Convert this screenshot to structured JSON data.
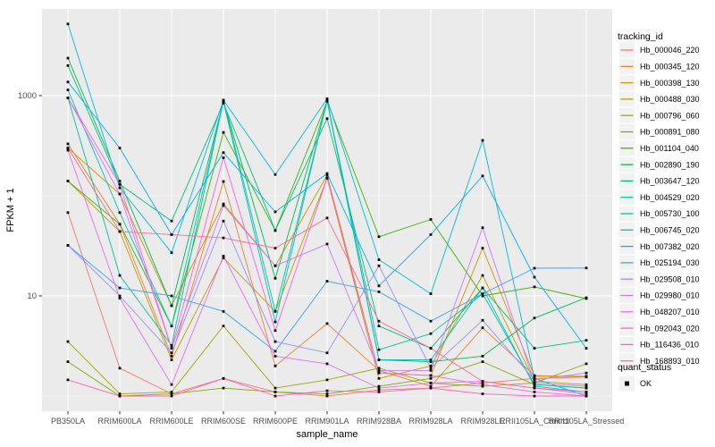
{
  "chart_data": {
    "type": "line",
    "xlabel": "sample_name",
    "ylabel": "FPKM + 1",
    "y_scale": "log10",
    "ylim": [
      1,
      5500
    ],
    "y_ticks": [
      {
        "label": "1000",
        "value": 1000
      },
      {
        "label": "10",
        "value": 10
      }
    ],
    "y_minor_grid_values": [
      1,
      100
    ],
    "grid_on": true,
    "legend_position": "right",
    "legend_title": "tracking_id",
    "legend2_title": "quant_status",
    "legend2_items": [
      {
        "label": "OK",
        "marker": "black-square"
      }
    ],
    "categories": [
      "PB350LA",
      "RRIM600LA",
      "RRIM600LE",
      "RRIM600SE",
      "RRIM600PE",
      "RRIM901LA",
      "RRIM928BA",
      "RRIM928LA",
      "RRIM928LE",
      "RRII105LA_Control",
      "RRII105LA_Stressed"
    ],
    "series": [
      {
        "name": "Hb_000046_220",
        "color": "#F8766D",
        "values": [
          68,
          1.9,
          1.05,
          1.5,
          1.1,
          1.0,
          1.15,
          1.2,
          1.35,
          1.5,
          1.55
        ]
      },
      {
        "name": "Hb_000345_120",
        "color": "#EA8331",
        "values": [
          330,
          52,
          2.5,
          139,
          2.0,
          5.3,
          1.8,
          1.25,
          4.8,
          1.6,
          1.55
        ]
      },
      {
        "name": "Hb_000398_130",
        "color": "#D89000",
        "values": [
          300,
          104,
          8.0,
          83,
          20,
          160,
          1.7,
          1.6,
          30,
          1.58,
          1.58
        ]
      },
      {
        "name": "Hb_000488_030",
        "color": "#C09B00",
        "values": [
          140,
          44,
          2.3,
          24,
          7.0,
          150,
          1.5,
          2.0,
          16,
          1.4,
          1.3
        ]
      },
      {
        "name": "Hb_000796_060",
        "color": "#A3A500",
        "values": [
          3.5,
          1.05,
          1.1,
          5.0,
          1.2,
          1.45,
          1.9,
          1.35,
          1.25,
          1.35,
          2.1
        ]
      },
      {
        "name": "Hb_000891_080",
        "color": "#7CAE00",
        "values": [
          2.2,
          1.0,
          1.05,
          1.2,
          1.1,
          1.05,
          1.25,
          1.5,
          2.2,
          1.3,
          1.2
        ]
      },
      {
        "name": "Hb_001104_040",
        "color": "#39B600",
        "values": [
          140,
          52,
          5.0,
          430,
          45,
          880,
          39,
          58,
          10,
          12.3,
          9.4
        ]
      },
      {
        "name": "Hb_002890_190",
        "color": "#00BB4E",
        "values": [
          2370,
          140,
          8.0,
          880,
          15,
          880,
          2.3,
          2.2,
          2.5,
          6.0,
          9.6
        ]
      },
      {
        "name": "Hb_003647_120",
        "color": "#00BF7D",
        "values": [
          2000,
          130,
          56,
          840,
          45,
          590,
          5.0,
          3.0,
          12,
          3.0,
          3.6
        ]
      },
      {
        "name": "Hb_004529_020",
        "color": "#00C1A3",
        "values": [
          950,
          16,
          3.2,
          900,
          7.0,
          880,
          2.9,
          4.2,
          10.5,
          1.3,
          1.2
        ]
      },
      {
        "name": "Hb_005730_100",
        "color": "#00BFC4",
        "values": [
          1140,
          68,
          5.0,
          870,
          5.5,
          900,
          2.3,
          2.3,
          12,
          1.25,
          1.1
        ]
      },
      {
        "name": "Hb_006745_020",
        "color": "#00BAE0",
        "values": [
          5200,
          120,
          27,
          900,
          163,
          930,
          23,
          10.5,
          358,
          1.5,
          1.0
        ]
      },
      {
        "name": "Hb_007382_020",
        "color": "#00B0F6",
        "values": [
          1370,
          300,
          41,
          270,
          69,
          167,
          12.6,
          41,
          158,
          15.4,
          3.0
        ]
      },
      {
        "name": "Hb_025194_030",
        "color": "#35A2FF",
        "values": [
          32,
          12,
          10,
          7.0,
          2.8,
          14,
          11,
          5.6,
          10.5,
          18.9,
          19
        ]
      },
      {
        "name": "Hb_029508_010",
        "color": "#9590FF",
        "values": [
          32,
          10,
          2.7,
          56,
          3.5,
          2.7,
          20,
          1.9,
          5.7,
          1.45,
          1.7
        ]
      },
      {
        "name": "Hb_029980_010",
        "color": "#C77CFF",
        "values": [
          950,
          104,
          3.0,
          80,
          20,
          33,
          1.8,
          1.8,
          48,
          1.35,
          1.25
        ]
      },
      {
        "name": "Hb_048207_010",
        "color": "#E76BF3",
        "values": [
          285,
          9.5,
          1.3,
          25,
          2.5,
          2.1,
          1.2,
          1.35,
          1.4,
          1.2,
          1.05
        ]
      },
      {
        "name": "Hb_092043_020",
        "color": "#FA62DB",
        "values": [
          950,
          130,
          3.0,
          240,
          4.5,
          150,
          1.7,
          1.6,
          1.3,
          1.1,
          1.0
        ]
      },
      {
        "name": "Hb_116436_010",
        "color": "#FF62BC",
        "values": [
          1.45,
          1.0,
          1.0,
          1.5,
          1.0,
          1.13,
          1.1,
          1.2,
          1.05,
          1.0,
          1.0
        ]
      },
      {
        "name": "Hb_168893_010",
        "color": "#FF6A98",
        "values": [
          300,
          44,
          41,
          38,
          30,
          60,
          5.6,
          3.0,
          1.4,
          1.2,
          1.1
        ]
      }
    ],
    "style": {
      "panel_bg": "#EBEBEB",
      "grid_color": "#FFFFFF",
      "point_color": "#0A0A0A",
      "tick_label_color": "#4D4D4D",
      "axis_title_color": "#000000",
      "legend_key_bg": "#F2F2F2",
      "page_bg": "#FFFFFF"
    }
  }
}
